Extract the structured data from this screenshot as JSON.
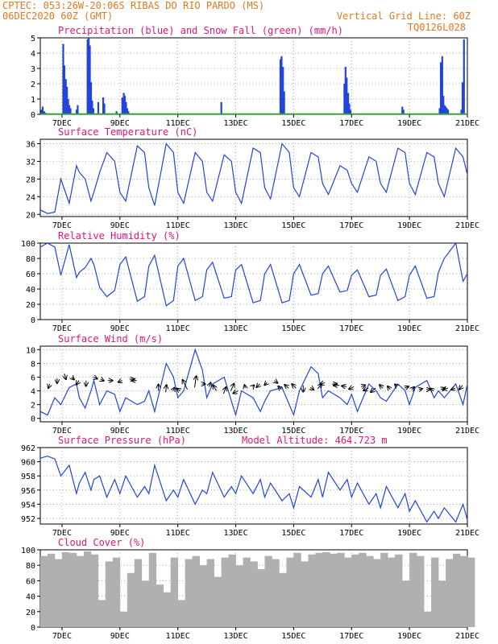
{
  "header": {
    "line1_left": "CPTEC:  053:26W-20:06S  RIBAS DO RIO PARDO (MS)",
    "line2_left": "06DEC2020 60Z (GMT)",
    "line2_right": "Vertical Grid Line: 60Z",
    "line3_right": "TQ0126L028"
  },
  "colors": {
    "header": "#e07a1e",
    "title": "#e0147a",
    "line": "#2244dd",
    "snow": "#22aa22",
    "cloud": "#b0b0b0",
    "grid": "#888888"
  },
  "chart_data": [
    {
      "type": "bar",
      "id": "precip",
      "title": "Precipitation (blue) and Snow Fall (green) (mm/h)",
      "ylim": [
        0,
        5
      ],
      "yticks": [
        "0",
        "1",
        "2",
        "3",
        "4",
        "5"
      ],
      "xticks": [
        "7DEC",
        "9DEC",
        "11DEC",
        "13DEC",
        "15DEC",
        "17DEC",
        "19DEC",
        "21DEC"
      ],
      "x_start_day": 6.25,
      "x_end_day": 21.0,
      "grid": true,
      "series": [
        {
          "name": "Precipitation",
          "x": [
            6.29,
            6.33,
            6.38,
            6.42,
            7.04,
            7.08,
            7.13,
            7.17,
            7.21,
            7.25,
            7.29,
            7.5,
            7.54,
            7.88,
            7.92,
            7.96,
            8.0,
            8.04,
            8.08,
            8.25,
            8.42,
            8.46,
            8.88,
            9.08,
            9.13,
            9.17,
            9.21,
            9.25,
            9.29,
            12.5,
            14.54,
            14.58,
            14.63,
            14.67,
            16.75,
            16.79,
            16.83,
            16.88,
            16.92,
            16.96,
            18.75,
            18.79,
            20.04,
            20.08,
            20.13,
            20.17,
            20.21,
            20.25,
            20.29,
            20.33,
            20.79,
            20.83,
            20.88
          ],
          "values": [
            0.3,
            0.5,
            0.2,
            0.1,
            4.6,
            3.2,
            2.3,
            1.8,
            1.0,
            0.6,
            0.4,
            0.3,
            0.6,
            4.9,
            5.0,
            4.5,
            2.1,
            0.9,
            0.4,
            0.8,
            1.1,
            0.7,
            0.2,
            1.1,
            1.4,
            1.2,
            0.8,
            0.4,
            0.2,
            0.8,
            3.6,
            3.8,
            3.1,
            1.5,
            2.0,
            3.1,
            2.4,
            1.4,
            0.7,
            0.3,
            0.5,
            0.3,
            0.4,
            3.4,
            3.8,
            1.2,
            0.6,
            0.5,
            0.4,
            0.3,
            0.3,
            2.1,
            4.9
          ]
        },
        {
          "name": "Snow Fall",
          "values": [
            0
          ]
        }
      ]
    },
    {
      "type": "line",
      "id": "temperature",
      "title": "Surface Temperature (nC)",
      "ylim": [
        19.5,
        37
      ],
      "yticks": [
        "20",
        "24",
        "28",
        "32",
        "36"
      ],
      "xticks": [
        "7DEC",
        "9DEC",
        "11DEC",
        "13DEC",
        "15DEC",
        "17DEC",
        "19DEC",
        "21DEC"
      ],
      "x_start_day": 6.25,
      "x_end_day": 21.0,
      "grid": true,
      "series": [
        {
          "name": "Surface Temperature",
          "x": [
            6.25,
            6.5,
            6.75,
            6.96,
            7.25,
            7.5,
            7.6,
            7.8,
            8.0,
            8.1,
            8.3,
            8.55,
            8.82,
            9.0,
            9.2,
            9.6,
            9.85,
            10.0,
            10.2,
            10.6,
            10.85,
            11.0,
            11.2,
            11.6,
            11.85,
            12.0,
            12.2,
            12.6,
            12.85,
            13.0,
            13.2,
            13.6,
            13.85,
            14.0,
            14.2,
            14.6,
            14.85,
            15.0,
            15.2,
            15.6,
            15.85,
            16.0,
            16.2,
            16.6,
            16.85,
            17.0,
            17.2,
            17.6,
            17.85,
            18.0,
            18.2,
            18.6,
            18.85,
            19.0,
            19.2,
            19.6,
            19.85,
            20.0,
            20.2,
            20.6,
            20.85,
            21.0
          ],
          "values": [
            21,
            20.2,
            20.5,
            28,
            22.5,
            31,
            29.5,
            28,
            23,
            25,
            29.5,
            34,
            32,
            25,
            23,
            35.5,
            34,
            26,
            22,
            36,
            34,
            25,
            22.5,
            34,
            32,
            25,
            23,
            33.5,
            32,
            25,
            22.5,
            35,
            34,
            26,
            23.5,
            36,
            34,
            26,
            24,
            34,
            33,
            27,
            24.5,
            31,
            30,
            27,
            25,
            33,
            32,
            27,
            25,
            35,
            34,
            27,
            24.5,
            34,
            33,
            27,
            24,
            35,
            33,
            29
          ]
        }
      ]
    },
    {
      "type": "line",
      "id": "humidity",
      "title": "Relative Humidity (%)",
      "ylim": [
        0,
        100
      ],
      "yticks": [
        "0",
        "20",
        "40",
        "60",
        "80",
        "100"
      ],
      "xticks": [
        "7DEC",
        "9DEC",
        "11DEC",
        "13DEC",
        "15DEC",
        "17DEC",
        "19DEC",
        "21DEC"
      ],
      "x_start_day": 6.25,
      "x_end_day": 21.0,
      "grid": true,
      "series": [
        {
          "name": "Relative Humidity",
          "x": [
            6.25,
            6.5,
            6.75,
            6.96,
            7.25,
            7.5,
            7.6,
            7.8,
            8.0,
            8.1,
            8.3,
            8.55,
            8.82,
            9.0,
            9.2,
            9.6,
            9.85,
            10.0,
            10.2,
            10.6,
            10.85,
            11.0,
            11.2,
            11.6,
            11.85,
            12.0,
            12.2,
            12.6,
            12.85,
            13.0,
            13.2,
            13.6,
            13.85,
            14.0,
            14.2,
            14.6,
            14.85,
            15.0,
            15.2,
            15.6,
            15.85,
            16.0,
            16.2,
            16.6,
            16.85,
            17.0,
            17.2,
            17.6,
            17.85,
            18.0,
            18.2,
            18.6,
            18.85,
            19.0,
            19.2,
            19.6,
            19.85,
            20.0,
            20.2,
            20.6,
            20.85,
            21.0
          ],
          "values": [
            95,
            100,
            95,
            58,
            98,
            55,
            62,
            68,
            80,
            72,
            42,
            30,
            38,
            72,
            82,
            24,
            30,
            70,
            84,
            18,
            25,
            70,
            80,
            25,
            30,
            65,
            75,
            28,
            30,
            65,
            72,
            22,
            25,
            60,
            72,
            22,
            25,
            60,
            72,
            32,
            34,
            60,
            70,
            36,
            38,
            58,
            65,
            30,
            32,
            58,
            66,
            25,
            30,
            58,
            70,
            28,
            30,
            62,
            80,
            100,
            50,
            60
          ]
        }
      ]
    },
    {
      "type": "line",
      "id": "wind",
      "title": "Surface Wind (m/s)",
      "ylim": [
        -0.5,
        10.5
      ],
      "yticks": [
        "0",
        "2",
        "4",
        "6",
        "8",
        "10"
      ],
      "xticks": [
        "7DEC",
        "9DEC",
        "11DEC",
        "13DEC",
        "15DEC",
        "17DEC",
        "19DEC",
        "21DEC"
      ],
      "x_start_day": 6.25,
      "x_end_day": 21.0,
      "grid": true,
      "series": [
        {
          "name": "Surface Wind",
          "x": [
            6.25,
            6.5,
            6.75,
            6.96,
            7.25,
            7.5,
            7.6,
            7.8,
            8.0,
            8.1,
            8.3,
            8.55,
            8.82,
            9.0,
            9.2,
            9.6,
            9.85,
            10.0,
            10.2,
            10.6,
            10.85,
            11.0,
            11.2,
            11.6,
            11.85,
            12.0,
            12.2,
            12.6,
            12.85,
            13.0,
            13.2,
            13.6,
            13.85,
            14.0,
            14.2,
            14.6,
            14.85,
            15.0,
            15.2,
            15.6,
            15.85,
            16.0,
            16.2,
            16.6,
            16.85,
            17.0,
            17.2,
            17.6,
            17.85,
            18.0,
            18.2,
            18.6,
            18.85,
            19.0,
            19.2,
            19.6,
            19.85,
            20.0,
            20.2,
            20.6,
            20.85,
            21.0
          ],
          "values": [
            1,
            0.5,
            3,
            2,
            4.5,
            5,
            3,
            1.5,
            4,
            5.5,
            2,
            4,
            3.5,
            1,
            3,
            2,
            2.5,
            4,
            1,
            8,
            6,
            3,
            4,
            10,
            7,
            3,
            5,
            6,
            2.5,
            0.5,
            4,
            3,
            1,
            2.5,
            4,
            4.5,
            2,
            0.5,
            4,
            7.5,
            6.5,
            3,
            4,
            3,
            2,
            3.5,
            1,
            5,
            4,
            3,
            2.5,
            5,
            4,
            2,
            4.5,
            5.5,
            3,
            4,
            3,
            5,
            2,
            5
          ]
        }
      ]
    },
    {
      "type": "line",
      "id": "pressure",
      "title": "Surface Pressure (hPa)",
      "annotation": "Model Altitude: 464.723 m",
      "ylim": [
        951.2,
        962
      ],
      "yticks": [
        "952",
        "954",
        "956",
        "958",
        "960",
        "962"
      ],
      "xticks": [
        "7DEC",
        "9DEC",
        "11DEC",
        "13DEC",
        "15DEC",
        "17DEC",
        "19DEC",
        "21DEC"
      ],
      "x_start_day": 6.25,
      "x_end_day": 21.0,
      "grid": true,
      "series": [
        {
          "name": "Surface Pressure",
          "x": [
            6.25,
            6.5,
            6.75,
            6.96,
            7.25,
            7.5,
            7.6,
            7.8,
            8.0,
            8.1,
            8.3,
            8.55,
            8.82,
            9.0,
            9.2,
            9.6,
            9.85,
            10.0,
            10.2,
            10.6,
            10.85,
            11.0,
            11.2,
            11.6,
            11.85,
            12.0,
            12.2,
            12.6,
            12.85,
            13.0,
            13.2,
            13.6,
            13.85,
            14.0,
            14.2,
            14.6,
            14.85,
            15.0,
            15.2,
            15.6,
            15.85,
            16.0,
            16.2,
            16.6,
            16.85,
            17.0,
            17.2,
            17.6,
            17.85,
            18.0,
            18.2,
            18.6,
            18.85,
            19.0,
            19.2,
            19.6,
            19.85,
            20.0,
            20.2,
            20.6,
            20.85,
            21.0
          ],
          "values": [
            960.5,
            960.8,
            960.4,
            958,
            959.5,
            955.5,
            957,
            958.5,
            956,
            957.5,
            958,
            955,
            957.5,
            955.5,
            958,
            955,
            956.5,
            955.5,
            959.5,
            954.5,
            956,
            955,
            957.5,
            954,
            956,
            955.5,
            958.5,
            955,
            956.5,
            955.5,
            958,
            955.5,
            957.5,
            955,
            957,
            954.5,
            955.5,
            953.5,
            956.5,
            955,
            957.5,
            955,
            958.5,
            956,
            957.5,
            955,
            957,
            954,
            955.5,
            953.5,
            956.5,
            953.5,
            955.5,
            953,
            954.5,
            951.5,
            953,
            952,
            953.5,
            951.5,
            954,
            951.8
          ]
        }
      ]
    },
    {
      "type": "bar",
      "id": "cloud",
      "title": "Cloud Cover (%)",
      "ylim": [
        0,
        100
      ],
      "yticks": [
        "0",
        "20",
        "40",
        "60",
        "80",
        "100"
      ],
      "xticks": [
        "7DEC",
        "9DEC",
        "11DEC",
        "13DEC",
        "15DEC",
        "17DEC",
        "19DEC",
        "21DEC"
      ],
      "x_start_day": 6.25,
      "x_end_day": 21.0,
      "grid": true,
      "series": [
        {
          "name": "Cloud Cover",
          "x": [
            6.25,
            6.5,
            6.75,
            7.0,
            7.25,
            7.5,
            7.75,
            8.0,
            8.25,
            8.5,
            8.75,
            9.0,
            9.25,
            9.5,
            9.75,
            10.0,
            10.25,
            10.5,
            10.75,
            11.0,
            11.25,
            11.5,
            11.75,
            12.0,
            12.25,
            12.5,
            12.75,
            13.0,
            13.25,
            13.5,
            13.75,
            14.0,
            14.25,
            14.5,
            14.75,
            15.0,
            15.25,
            15.5,
            15.75,
            16.0,
            16.25,
            16.5,
            16.75,
            17.0,
            17.25,
            17.5,
            17.75,
            18.0,
            18.25,
            18.5,
            18.75,
            19.0,
            19.25,
            19.5,
            19.75,
            20.0,
            20.25,
            20.5,
            20.75,
            21.0
          ],
          "values": [
            92,
            95,
            88,
            97,
            96,
            92,
            98,
            94,
            35,
            85,
            90,
            20,
            70,
            88,
            60,
            96,
            55,
            45,
            90,
            35,
            88,
            92,
            80,
            88,
            65,
            90,
            94,
            80,
            90,
            85,
            75,
            92,
            88,
            70,
            90,
            96,
            85,
            94,
            96,
            97,
            95,
            96,
            90,
            94,
            96,
            92,
            88,
            96,
            90,
            94,
            60,
            96,
            92,
            20,
            90,
            60,
            88,
            95,
            92,
            90
          ]
        }
      ]
    }
  ]
}
